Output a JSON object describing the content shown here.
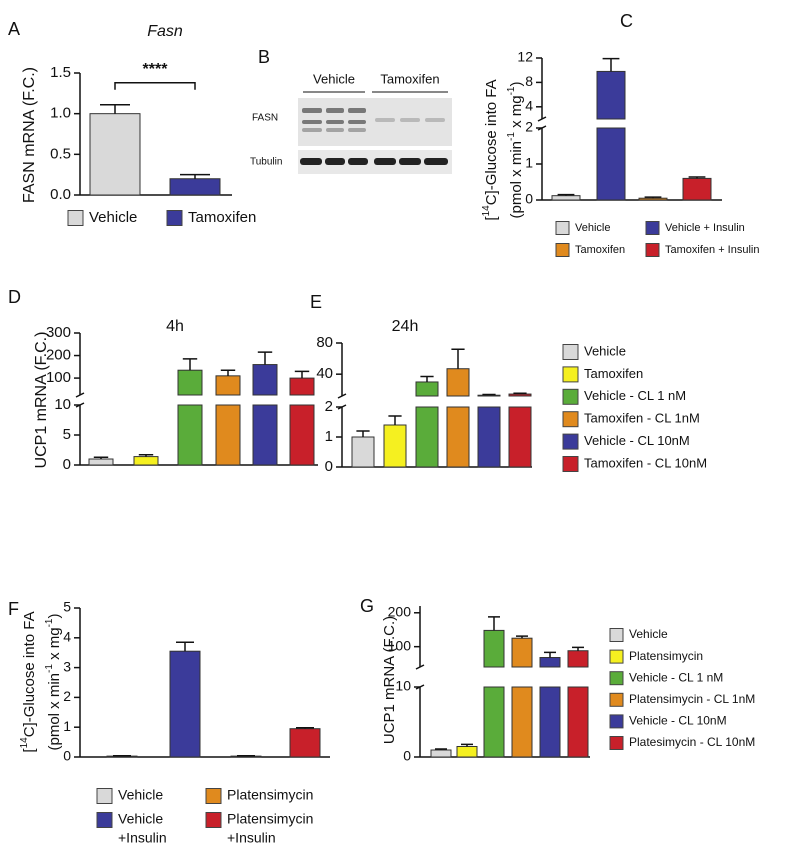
{
  "chart_data": [
    {
      "type": "bar",
      "panel": "A",
      "title": "Fasn",
      "y_label": [
        [
          "FASN mRNA (F.C.)"
        ]
      ],
      "categories": [
        "Vehicle",
        "Tamoxifen"
      ],
      "colors": [
        "#d9d9d9",
        "#3b3b9a"
      ],
      "values": [
        1,
        0.2
      ],
      "errors": [
        0.11,
        0.05
      ],
      "ylim": [
        0,
        1.5
      ],
      "yticks": [
        {
          "value": 0,
          "label": "0.0"
        },
        {
          "value": 0.5,
          "label": "0.5"
        },
        {
          "value": 1,
          "label": "1.0"
        },
        {
          "value": 1.5,
          "label": "1.5"
        }
      ],
      "annotation": "****"
    },
    {
      "type": "bar",
      "panel": "C",
      "y_label": [
        [
          "[",
          "14",
          "C]-Glucose into FA"
        ],
        [
          "(pmol x min",
          "-1",
          " x mg",
          "-1",
          ")"
        ]
      ],
      "categories": [
        "Vehicle",
        "Vehicle + Insulin",
        "Tamoxifen",
        "Tamoxifen + Insulin"
      ],
      "colors": [
        "#d9d9d9",
        "#3b3b9a",
        "#e08a1e",
        "#c8202a"
      ],
      "values": [
        0.12,
        9.8,
        0.05,
        0.6
      ],
      "errors": [
        0.03,
        2.1,
        0.03,
        0.04
      ],
      "ylim": [
        0,
        2
      ],
      "yticks": [
        0,
        1,
        2
      ],
      "y_break": {
        "ylim": [
          2,
          12
        ],
        "yticks": [
          4,
          8,
          12
        ]
      }
    },
    {
      "type": "bar",
      "panel": "D",
      "title": "4h",
      "y_label": [
        [
          "UCP1 mRNA (F.C.)"
        ]
      ],
      "colors": [
        "#d9d9d9",
        "#f5f020",
        "#5aac3a",
        "#e08a1e",
        "#3b3b9a",
        "#c8202a"
      ],
      "values": [
        1,
        1.4,
        135,
        110,
        160,
        100
      ],
      "errors": [
        0.3,
        0.3,
        50,
        25,
        55,
        30
      ],
      "ylim": [
        0,
        10
      ],
      "yticks": [
        0,
        5,
        10
      ],
      "y_break": {
        "ylim": [
          25,
          300
        ],
        "yticks": [
          100,
          200,
          300
        ]
      }
    },
    {
      "type": "bar",
      "panel": "E",
      "title": "24h",
      "categories": [
        "Vehicle",
        "Tamoxifen",
        "Vehicle - CL 1 nM",
        "Tamoxifen - CL 1nM",
        "Vehicle - CL 10nM",
        "Tamoxifen - CL 10nM"
      ],
      "colors": [
        "#d9d9d9",
        "#f5f020",
        "#5aac3a",
        "#e08a1e",
        "#3b3b9a",
        "#c8202a"
      ],
      "values": [
        1,
        1.4,
        30,
        47,
        13,
        14.5
      ],
      "errors": [
        0.2,
        0.3,
        7,
        25,
        1,
        1
      ],
      "ylim": [
        0,
        2
      ],
      "yticks": [
        0,
        1,
        2
      ],
      "y_break": {
        "ylim": [
          12,
          80
        ],
        "yticks": [
          40,
          80
        ]
      }
    },
    {
      "type": "bar",
      "panel": "F",
      "y_label": [
        [
          "[",
          "14",
          "C]-Glucose into FA"
        ],
        [
          "(pmol x min",
          "-1",
          " x mg",
          "-1",
          ")"
        ]
      ],
      "categories": [
        [
          "Vehicle"
        ],
        [
          "Vehicle",
          "+Insulin"
        ],
        [
          "Platensimycin"
        ],
        [
          "Platensimycin",
          "+Insulin"
        ]
      ],
      "colors": [
        "#d9d9d9",
        "#3b3b9a",
        "#e08a1e",
        "#c8202a"
      ],
      "values": [
        0.03,
        3.55,
        0.03,
        0.95
      ],
      "errors": [
        0.01,
        0.3,
        0.01,
        0.03
      ],
      "ylim": [
        0,
        5
      ],
      "yticks": [
        0,
        1,
        2,
        3,
        4,
        5
      ]
    },
    {
      "type": "bar",
      "panel": "G",
      "y_label": [
        [
          "UCP1 mRNA (F.C.)"
        ]
      ],
      "categories": [
        "Vehicle",
        "Platensimycin",
        "Vehicle - CL 1 nM",
        "Platensimycin - CL 1nM",
        "Vehicle - CL 10nM",
        "Platesimycin - CL 10nM"
      ],
      "colors": [
        "#d9d9d9",
        "#f5f020",
        "#5aac3a",
        "#e08a1e",
        "#3b3b9a",
        "#c8202a"
      ],
      "values": [
        1,
        1.5,
        148,
        125,
        68,
        88
      ],
      "errors": [
        0.15,
        0.3,
        40,
        6,
        15,
        10
      ],
      "ylim": [
        0,
        10
      ],
      "yticks": [
        0,
        10
      ],
      "y_break": {
        "ylim": [
          40,
          220
        ],
        "yticks": [
          100,
          200
        ]
      }
    }
  ],
  "blot": {
    "panel": "B",
    "groups": [
      "Vehicle",
      "Tamoxifen"
    ],
    "bands": [
      "FASN",
      "Tubulin"
    ]
  }
}
